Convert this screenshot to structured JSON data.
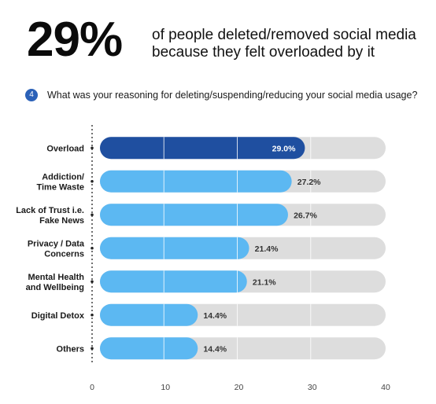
{
  "headline": {
    "percent": "29%",
    "line1": "of people deleted/removed social media",
    "line2": "because they felt overloaded by it"
  },
  "question": {
    "number": "4",
    "text": "What was your reasoning for deleting/suspending/reducing your social media usage?"
  },
  "colors": {
    "highlight_bar": "#1f4fa0",
    "bar": "#5cb8f2",
    "track": "#dddddd"
  },
  "chart_data": {
    "type": "bar",
    "orientation": "horizontal",
    "title": "",
    "xlabel": "",
    "ylabel": "",
    "categories": [
      [
        "Overload"
      ],
      [
        "Addiction/",
        "Time Waste"
      ],
      [
        "Lack of Trust i.e.",
        "Fake News"
      ],
      [
        "Privacy / Data",
        "Concerns"
      ],
      [
        "Mental Health",
        "and Wellbeing"
      ],
      [
        "Digital Detox"
      ],
      [
        "Others"
      ]
    ],
    "values": [
      29.0,
      27.2,
      26.7,
      21.4,
      21.1,
      14.4,
      14.4
    ],
    "value_labels": [
      "29.0%",
      "27.2%",
      "26.7%",
      "21.4%",
      "21.1%",
      "14.4%",
      "14.4%"
    ],
    "highlighted_index": 0,
    "xlim": [
      0,
      40
    ],
    "xticks": [
      "0",
      "10",
      "20",
      "30",
      "40"
    ],
    "grid": false,
    "legend": "none"
  }
}
